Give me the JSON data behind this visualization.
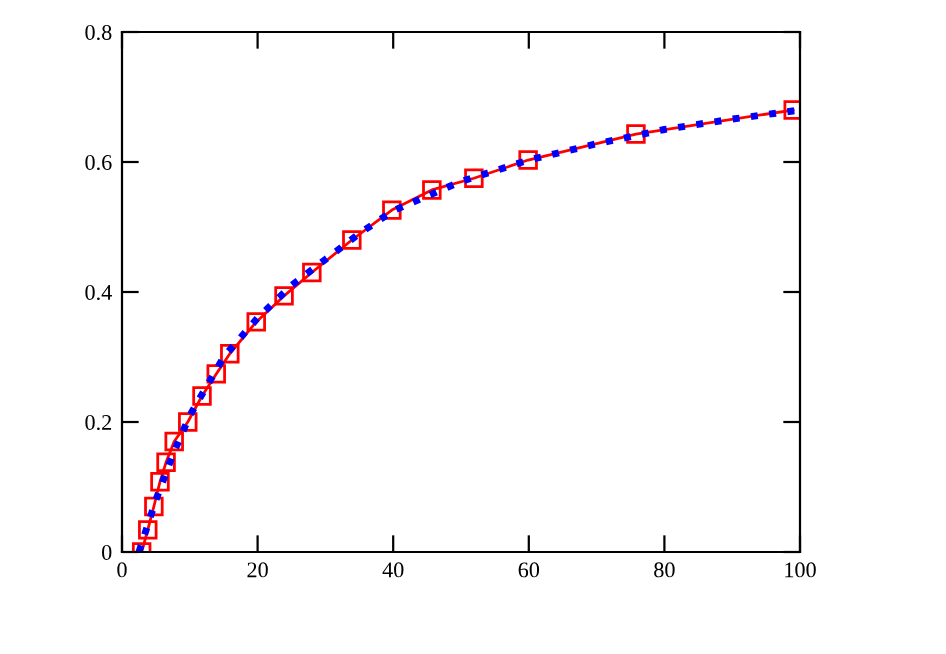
{
  "chart_data": {
    "type": "line",
    "x": [
      2.9,
      3.8,
      4.7,
      5.6,
      6.5,
      7.7,
      9.7,
      11.8,
      13.9,
      15.9,
      19.8,
      23.9,
      28,
      33.9,
      39.8,
      45.7,
      51.9,
      59.9,
      75.8,
      99
    ],
    "series": [
      {
        "color": "#ff0000",
        "marker": "square",
        "line_style": "solid",
        "values": [
          0,
          0.034,
          0.07,
          0.108,
          0.138,
          0.17,
          0.2,
          0.24,
          0.274,
          0.305,
          0.354,
          0.394,
          0.43,
          0.48,
          0.526,
          0.557,
          0.575,
          0.603,
          0.643,
          0.68
        ]
      },
      {
        "color": "#0000ff",
        "marker": "none",
        "line_style": "dotted",
        "x": [
          2.5,
          5,
          7.5,
          10,
          15,
          20,
          25,
          30,
          35,
          40,
          50,
          60,
          70,
          80,
          90,
          100
        ],
        "values": [
          0,
          0.08,
          0.15,
          0.21,
          0.3,
          0.36,
          0.41,
          0.45,
          0.49,
          0.525,
          0.57,
          0.603,
          0.628,
          0.65,
          0.666,
          0.68
        ]
      }
    ],
    "xlim": [
      0,
      100
    ],
    "ylim": [
      0,
      0.8
    ],
    "xticks": [
      0,
      20,
      40,
      60,
      80,
      100
    ],
    "yticks": [
      0,
      0.2,
      0.4,
      0.6,
      0.8
    ],
    "grid": false,
    "legend": false
  }
}
